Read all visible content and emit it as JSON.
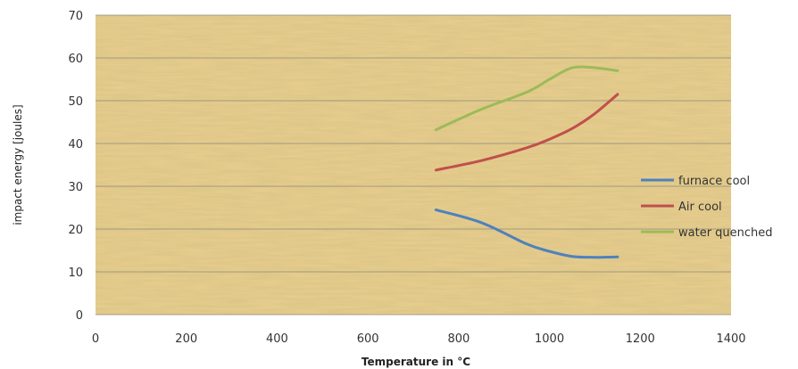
{
  "chart_data": {
    "type": "line",
    "title": "",
    "xlabel": "Temperature in °C",
    "ylabel": "impact energy [joules]",
    "xlim": [
      0,
      1400
    ],
    "ylim": [
      0,
      70
    ],
    "x_ticks": [
      "0",
      "200",
      "400",
      "600",
      "800",
      "1000",
      "1200",
      "1400"
    ],
    "y_ticks": [
      "0",
      "10",
      "20",
      "30",
      "40",
      "50",
      "60",
      "70"
    ],
    "grid": "horizontal",
    "legend_position": "right",
    "smooth": true,
    "series": [
      {
        "name": "furnace cool",
        "color": "#4f81bd",
        "points": [
          [
            750,
            24.5
          ],
          [
            850,
            21.5
          ],
          [
            950,
            16.5
          ],
          [
            1000,
            14.8
          ],
          [
            1050,
            13.6
          ],
          [
            1100,
            13.4
          ],
          [
            1150,
            13.5
          ]
        ]
      },
      {
        "name": "Air cool",
        "color": "#c0504d",
        "points": [
          [
            750,
            33.8
          ],
          [
            850,
            36
          ],
          [
            950,
            39
          ],
          [
            1000,
            41
          ],
          [
            1050,
            43.5
          ],
          [
            1100,
            47
          ],
          [
            1150,
            51.5
          ]
        ]
      },
      {
        "name": "water quenched",
        "color": "#9bbb59",
        "points": [
          [
            750,
            43.2
          ],
          [
            850,
            48
          ],
          [
            950,
            52
          ],
          [
            1000,
            55
          ],
          [
            1050,
            57.7
          ],
          [
            1100,
            57.7
          ],
          [
            1150,
            57
          ]
        ]
      }
    ],
    "background": "#e8cf8f"
  }
}
